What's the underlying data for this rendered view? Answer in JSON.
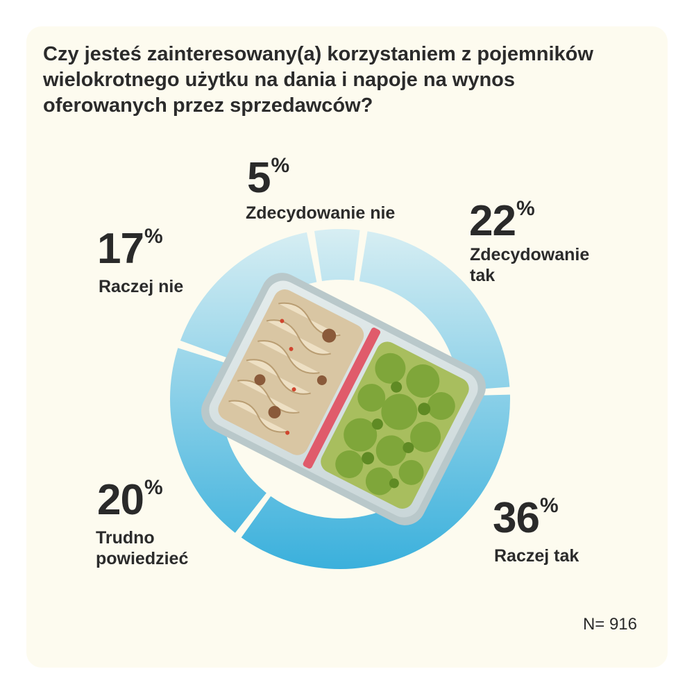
{
  "title": "Czy jesteś zainteresowany(a) korzystaniem z pojemników wielokrotnego użytku na dania i napoje na wynos oferowanych przez sprzedawców?",
  "sample_label": "N= 916",
  "colors": {
    "card_bg": "#fdfbef",
    "ring_light": "#d7eef3",
    "ring_dark": "#3ab0dc",
    "text": "#2b2b2b"
  },
  "chart_data": {
    "type": "pie",
    "style": "donut",
    "title": "Czy jesteś zainteresowany(a) korzystaniem z pojemników wielokrotnego użytku na dania i napoje na wynos oferowanych przez sprzedawców?",
    "categories": [
      "Zdecydowanie tak",
      "Raczej tak",
      "Trudno powiedzieć",
      "Raczej nie",
      "Zdecydowanie nie"
    ],
    "values": [
      22,
      36,
      20,
      17,
      5
    ],
    "unit": "%",
    "sample_size": 916,
    "labels": [
      {
        "value": "22",
        "sign": "%",
        "text": "Zdecydowanie\ntak"
      },
      {
        "value": "36",
        "sign": "%",
        "text": "Raczej tak"
      },
      {
        "value": "20",
        "sign": "%",
        "text": "Trudno\npowiedzieć"
      },
      {
        "value": "17",
        "sign": "%",
        "text": "Raczej nie"
      },
      {
        "value": "5",
        "sign": "%",
        "text": "Zdecydowanie nie"
      }
    ],
    "center_image": "reusable-lunch-box-photo"
  }
}
